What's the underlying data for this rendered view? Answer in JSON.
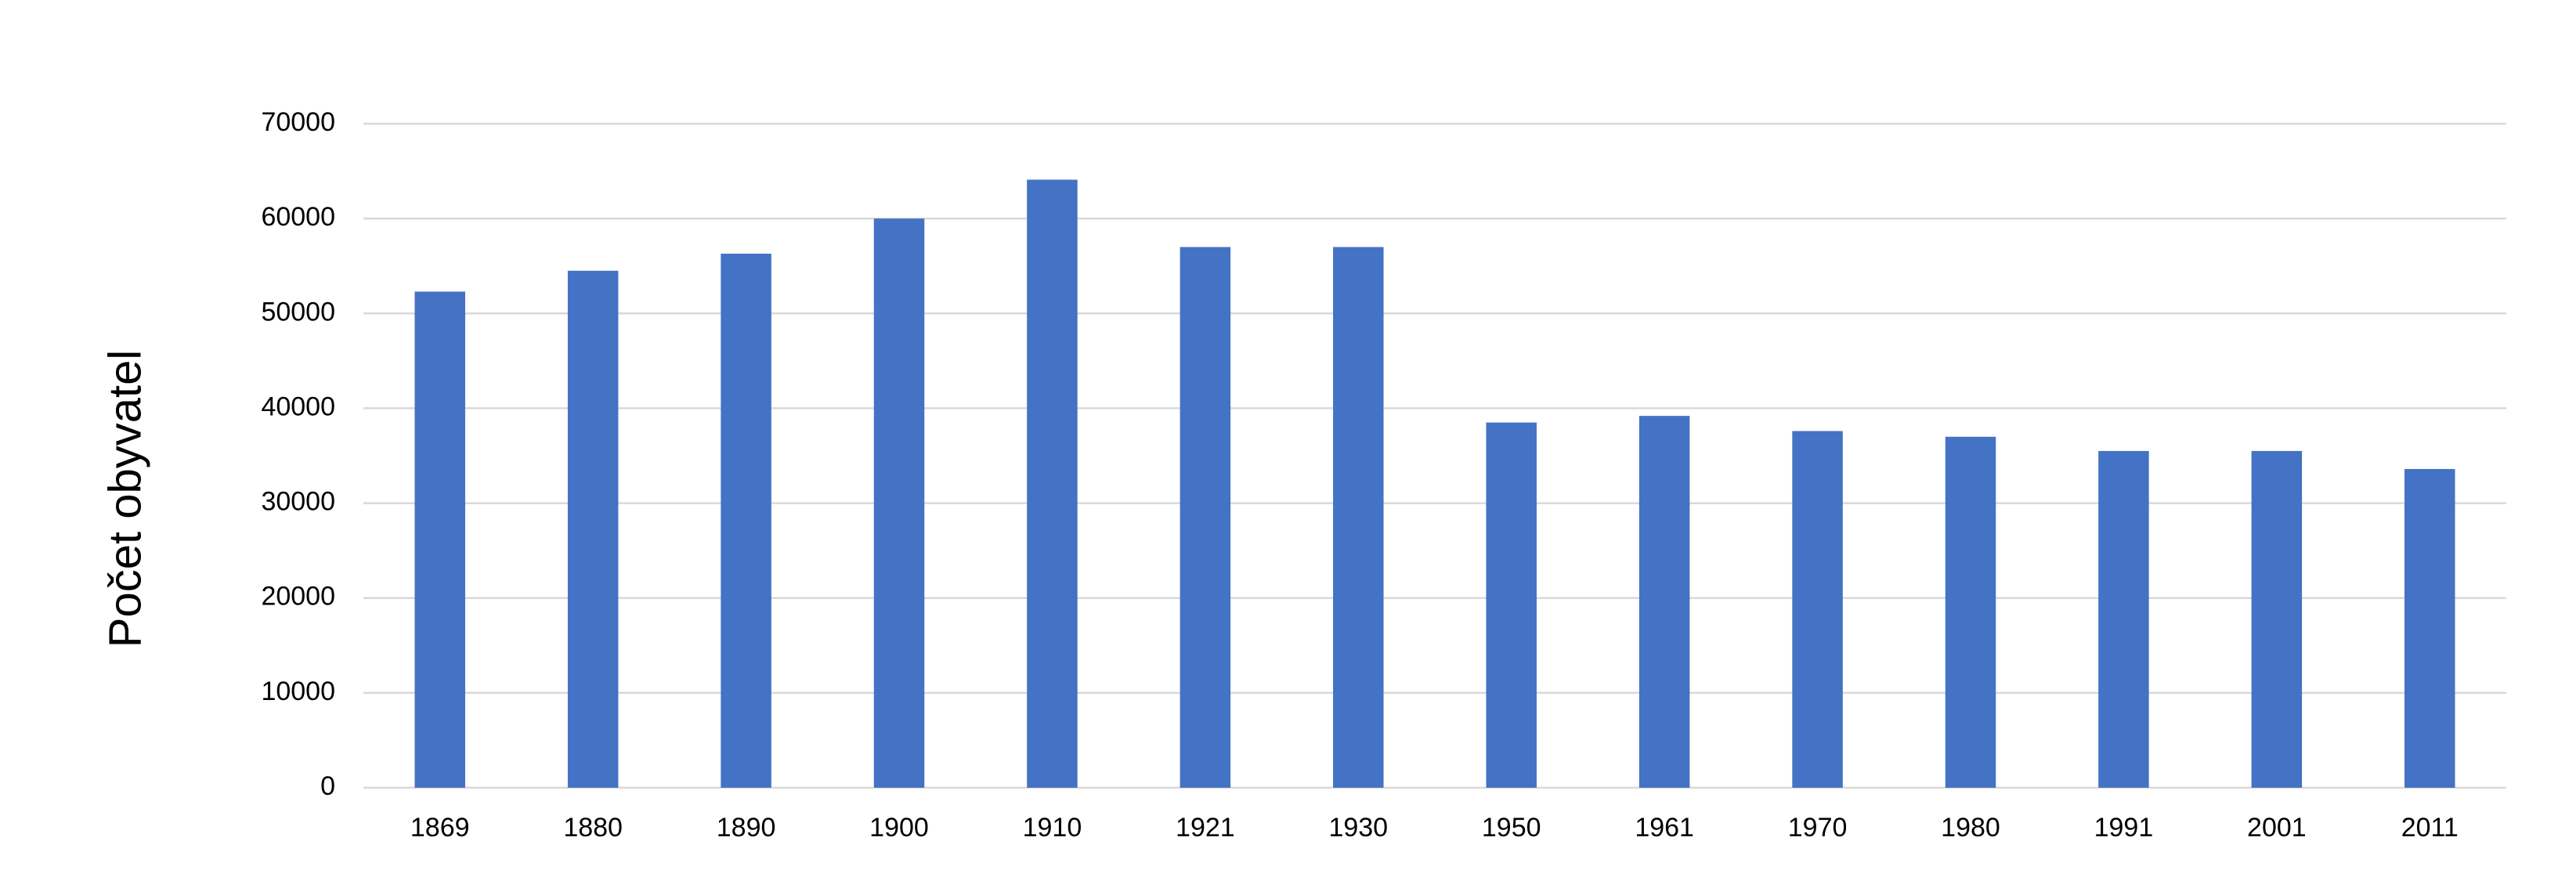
{
  "chart_data": {
    "type": "bar",
    "y_axis_label": "Počet obyvatel",
    "categories": [
      "1869",
      "1880",
      "1890",
      "1900",
      "1910",
      "1921",
      "1930",
      "1950",
      "1961",
      "1970",
      "1980",
      "1991",
      "2001",
      "2011"
    ],
    "values": [
      52300,
      54500,
      56300,
      60000,
      64100,
      57000,
      57000,
      38500,
      39200,
      37600,
      37000,
      35500,
      35500,
      33600
    ],
    "color": "#4472c4",
    "ylim": [
      0,
      70000
    ],
    "yticks": [
      0,
      10000,
      20000,
      30000,
      40000,
      50000,
      60000,
      70000
    ],
    "grid": true
  }
}
